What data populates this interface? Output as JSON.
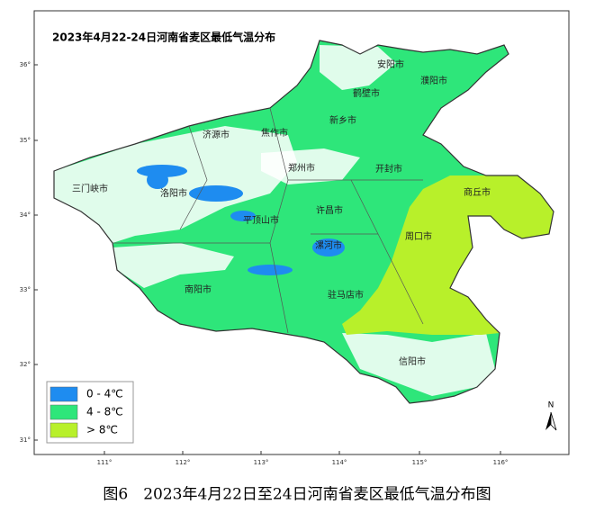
{
  "map": {
    "title": "2023年4月22-24日河南省麦区最低气温分布",
    "legend": [
      {
        "label": "0 - 4℃",
        "color": "#1e8cf0"
      },
      {
        "label": "4 - 8℃",
        "color": "#2ee67a"
      },
      {
        "label": "> 8℃",
        "color": "#b8f02a"
      }
    ],
    "cities": [
      "安阳市",
      "濮阳市",
      "鹤壁市",
      "新乡市",
      "济源市",
      "焦作市",
      "郑州市",
      "开封市",
      "三门峡市",
      "洛阳市",
      "商丘市",
      "许昌市",
      "平顶山市",
      "周口市",
      "漯河市",
      "南阳市",
      "驻马店市",
      "信阳市"
    ],
    "lon_ticks": [
      "111°",
      "112°",
      "113°",
      "114°",
      "115°",
      "116°"
    ],
    "lat_ticks": [
      "36°",
      "35°",
      "34°",
      "33°",
      "32°",
      "31°"
    ],
    "north_label": "N"
  },
  "caption": "图6　2023年4月22日至24日河南省麦区最低气温分布图"
}
